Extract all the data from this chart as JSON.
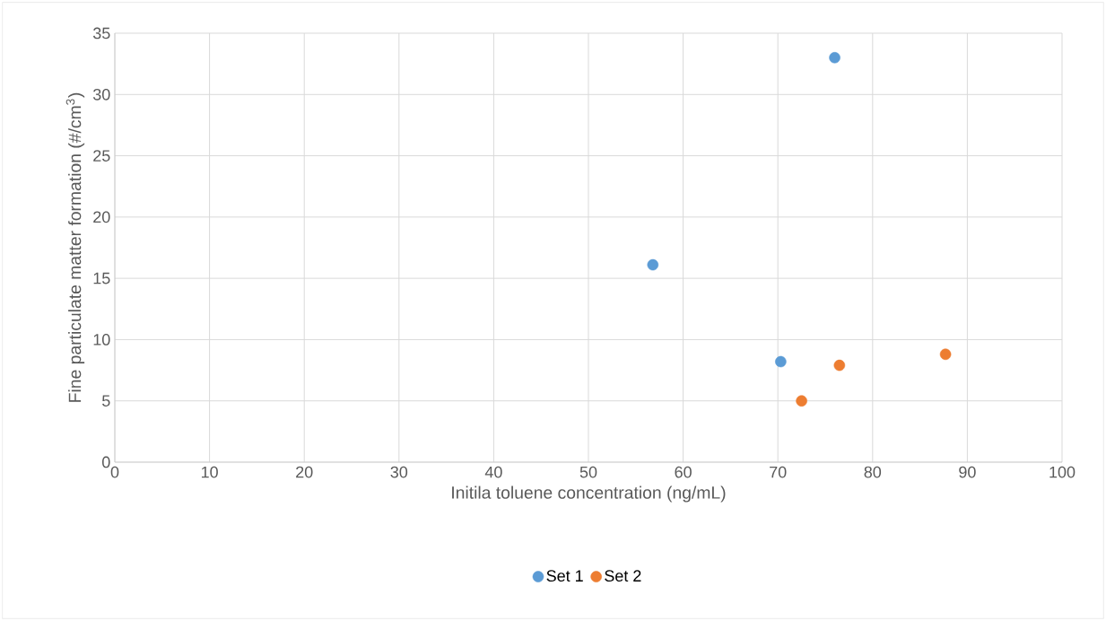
{
  "chart_data": {
    "type": "scatter",
    "xlabel": "Initila toluene concentration (ng/mL)",
    "ylabel": "Fine particulate matter formation (#/cm$^{3}$)",
    "series": [
      {
        "name": "Set 1",
        "color": "#5b9bd5",
        "x": [
          56.8,
          70.3,
          76.0
        ],
        "values": [
          16.1,
          8.2,
          33.0
        ]
      },
      {
        "name": "Set 2",
        "color": "#ed7d31",
        "x": [
          72.5,
          76.5,
          87.7
        ],
        "values": [
          5.0,
          7.9,
          8.8
        ]
      }
    ],
    "xlim": [
      0,
      100
    ],
    "ylim": [
      0,
      35
    ],
    "xticks": [
      0,
      10,
      20,
      30,
      40,
      50,
      60,
      70,
      80,
      90,
      100
    ],
    "yticks": [
      0,
      5,
      10,
      15,
      20,
      25,
      30,
      35
    ],
    "grid": true,
    "legend": "bottom",
    "marker": "circle"
  }
}
